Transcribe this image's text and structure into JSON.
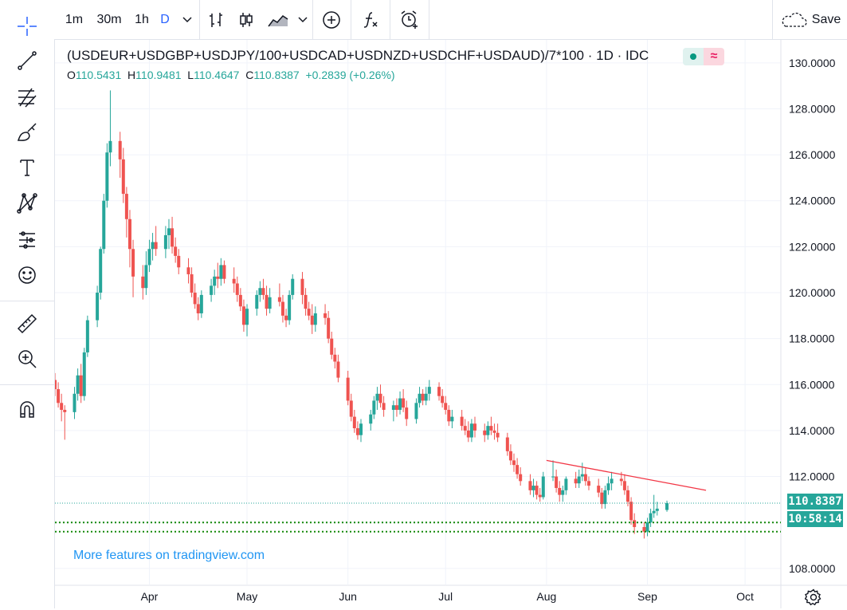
{
  "toolbar": {
    "intervals": [
      "1m",
      "30m",
      "1h",
      "D"
    ],
    "active_interval": "D",
    "save_label": "Save",
    "icons": [
      "chevron-down-icon",
      "bar-style-icon",
      "candle-style-icon",
      "area-style-icon",
      "chevron-down-icon",
      "add-compare-icon",
      "indicators-icon",
      "alert-icon",
      "cloud-icon"
    ]
  },
  "drawing_tools": [
    "crosshair-icon",
    "trend-line-icon",
    "fib-tool-icon",
    "brush-icon",
    "text-icon",
    "pattern-icon",
    "forecast-icon",
    "emoji-icon",
    "ruler-icon",
    "zoom-icon",
    "magnet-icon"
  ],
  "legend": {
    "title": "(USDEUR+USDGBP+USDJPY/100+USDCAD+USDNZD+USDCHF+USDAUD)/7*100 · 1D · IDC",
    "open_key": "O",
    "open": "110.5431",
    "high_key": "H",
    "high": "110.9481",
    "low_key": "L",
    "low": "110.4647",
    "close_key": "C",
    "close": "110.8387",
    "change": "+0.2839 (+0.26%)"
  },
  "price_label": "110.8387",
  "countdown_label": "10:58:14",
  "watermark": "More features on tradingview.com",
  "colors": {
    "up": "#26a69a",
    "down": "#ef5350",
    "accent": "#2962ff",
    "trendline": "#f23645",
    "level": "#138808"
  },
  "chart_data": {
    "type": "candlestick",
    "y_ticks": [
      "108.0000",
      "110.0000",
      "112.0000",
      "114.0000",
      "116.0000",
      "118.0000",
      "120.0000",
      "122.0000",
      "124.0000",
      "126.0000",
      "128.0000",
      "130.0000"
    ],
    "ylim": [
      107.3,
      131.0
    ],
    "x_ticks": [
      {
        "label": "Apr",
        "date": "2020-04-01"
      },
      {
        "label": "May",
        "date": "2020-05-01"
      },
      {
        "label": "Jun",
        "date": "2020-06-01"
      },
      {
        "label": "Jul",
        "date": "2020-07-01"
      },
      {
        "label": "Aug",
        "date": "2020-08-01"
      },
      {
        "label": "Sep",
        "date": "2020-09-01"
      },
      {
        "label": "Oct",
        "date": "2020-10-01"
      }
    ],
    "x_range": [
      "2020-03-03",
      "2020-10-12"
    ],
    "last_price": 110.8387,
    "horizontal_levels": [
      110.0,
      109.6
    ],
    "trend_line": [
      [
        "2020-08-01",
        112.7
      ],
      [
        "2020-09-19",
        111.4
      ]
    ],
    "candles": [
      [
        "2020-03-03",
        116.2,
        116.5,
        115.5,
        115.8
      ],
      [
        "2020-03-04",
        115.8,
        116.1,
        115.0,
        115.2
      ],
      [
        "2020-03-05",
        115.2,
        115.6,
        114.4,
        114.9
      ],
      [
        "2020-03-06",
        114.9,
        115.1,
        113.6,
        114.8
      ],
      [
        "2020-03-09",
        114.8,
        115.9,
        114.5,
        115.6
      ],
      [
        "2020-03-10",
        115.6,
        116.7,
        115.3,
        116.4
      ],
      [
        "2020-03-11",
        116.4,
        116.9,
        115.2,
        115.5
      ],
      [
        "2020-03-12",
        115.5,
        117.6,
        115.3,
        117.4
      ],
      [
        "2020-03-13",
        117.4,
        119.0,
        117.2,
        118.8
      ],
      [
        "2020-03-16",
        118.8,
        120.3,
        118.5,
        120.0
      ],
      [
        "2020-03-17",
        120.0,
        122.0,
        119.7,
        121.9
      ],
      [
        "2020-03-18",
        121.9,
        124.3,
        121.7,
        124.0
      ],
      [
        "2020-03-19",
        124.0,
        126.5,
        123.7,
        126.1
      ],
      [
        "2020-03-20",
        126.1,
        128.8,
        125.5,
        126.6
      ],
      [
        "2020-03-23",
        126.6,
        127.0,
        125.0,
        125.8
      ],
      [
        "2020-03-24",
        125.8,
        126.3,
        123.9,
        124.3
      ],
      [
        "2020-03-25",
        124.3,
        124.6,
        122.4,
        123.2
      ],
      [
        "2020-03-26",
        123.2,
        123.6,
        121.1,
        121.9
      ],
      [
        "2020-03-27",
        121.9,
        122.3,
        119.8,
        120.7
      ],
      [
        "2020-03-30",
        120.7,
        121.2,
        119.7,
        120.2
      ],
      [
        "2020-03-31",
        120.2,
        121.8,
        119.9,
        121.2
      ],
      [
        "2020-04-01",
        121.2,
        122.3,
        120.9,
        121.9
      ],
      [
        "2020-04-02",
        121.9,
        122.6,
        121.4,
        122.2
      ],
      [
        "2020-04-03",
        122.2,
        122.9,
        121.6,
        121.9
      ],
      [
        "2020-04-06",
        121.9,
        122.9,
        121.5,
        122.5
      ],
      [
        "2020-04-07",
        122.5,
        123.2,
        121.9,
        122.8
      ],
      [
        "2020-04-08",
        122.8,
        123.3,
        121.7,
        122.0
      ],
      [
        "2020-04-09",
        122.0,
        122.4,
        121.3,
        121.6
      ],
      [
        "2020-04-10",
        121.6,
        121.9,
        120.8,
        121.1
      ],
      [
        "2020-04-13",
        121.1,
        121.5,
        120.4,
        120.8
      ],
      [
        "2020-04-14",
        120.8,
        121.1,
        119.8,
        120.0
      ],
      [
        "2020-04-15",
        120.0,
        120.4,
        119.3,
        119.5
      ],
      [
        "2020-04-16",
        119.5,
        119.8,
        118.8,
        119.1
      ],
      [
        "2020-04-17",
        119.1,
        120.1,
        118.9,
        119.9
      ],
      [
        "2020-04-20",
        119.9,
        120.6,
        119.6,
        120.3
      ],
      [
        "2020-04-21",
        120.3,
        121.0,
        119.9,
        120.7
      ],
      [
        "2020-04-22",
        120.7,
        121.3,
        120.2,
        120.6
      ],
      [
        "2020-04-23",
        120.6,
        121.5,
        120.3,
        121.2
      ],
      [
        "2020-04-24",
        121.2,
        121.4,
        120.4,
        120.6
      ],
      [
        "2020-04-27",
        120.6,
        121.1,
        120.0,
        120.4
      ],
      [
        "2020-04-28",
        120.4,
        120.7,
        119.6,
        119.9
      ],
      [
        "2020-04-29",
        119.9,
        120.2,
        119.2,
        119.4
      ],
      [
        "2020-04-30",
        119.4,
        119.7,
        118.3,
        118.6
      ],
      [
        "2020-05-01",
        118.6,
        119.5,
        118.1,
        119.3
      ],
      [
        "2020-05-04",
        119.3,
        120.1,
        119.0,
        119.9
      ],
      [
        "2020-05-05",
        119.9,
        120.5,
        119.6,
        120.2
      ],
      [
        "2020-05-06",
        120.2,
        120.6,
        119.7,
        119.9
      ],
      [
        "2020-05-07",
        119.9,
        120.3,
        119.0,
        119.3
      ],
      [
        "2020-05-08",
        119.3,
        120.2,
        119.1,
        119.8
      ],
      [
        "2020-05-11",
        119.8,
        120.4,
        119.4,
        119.6
      ],
      [
        "2020-05-12",
        119.6,
        119.9,
        118.7,
        119.0
      ],
      [
        "2020-05-13",
        119.0,
        119.3,
        118.5,
        118.8
      ],
      [
        "2020-05-14",
        118.8,
        120.1,
        118.6,
        119.9
      ],
      [
        "2020-05-15",
        119.9,
        120.8,
        119.7,
        120.6
      ],
      [
        "2020-05-18",
        120.6,
        120.9,
        119.5,
        119.9
      ],
      [
        "2020-05-19",
        119.9,
        120.2,
        119.0,
        119.3
      ],
      [
        "2020-05-20",
        119.3,
        119.6,
        118.8,
        119.0
      ],
      [
        "2020-05-21",
        119.0,
        119.5,
        118.2,
        118.6
      ],
      [
        "2020-05-22",
        118.6,
        119.4,
        118.3,
        119.1
      ],
      [
        "2020-05-25",
        119.1,
        119.5,
        118.6,
        118.9
      ],
      [
        "2020-05-26",
        118.9,
        119.2,
        117.8,
        118.0
      ],
      [
        "2020-05-27",
        118.0,
        118.3,
        117.1,
        117.3
      ],
      [
        "2020-05-28",
        117.3,
        117.6,
        116.7,
        117.0
      ],
      [
        "2020-05-29",
        117.0,
        117.3,
        116.1,
        116.3
      ],
      [
        "2020-06-01",
        116.3,
        116.6,
        115.1,
        115.3
      ],
      [
        "2020-06-02",
        115.3,
        115.6,
        114.4,
        114.6
      ],
      [
        "2020-06-03",
        114.6,
        114.9,
        113.9,
        114.1
      ],
      [
        "2020-06-04",
        114.1,
        114.4,
        113.6,
        113.8
      ],
      [
        "2020-06-05",
        113.8,
        114.5,
        113.5,
        114.3
      ],
      [
        "2020-06-08",
        114.3,
        114.9,
        114.0,
        114.7
      ],
      [
        "2020-06-09",
        114.7,
        115.5,
        114.5,
        115.3
      ],
      [
        "2020-06-10",
        115.3,
        115.9,
        114.9,
        115.6
      ],
      [
        "2020-06-11",
        115.6,
        116.0,
        115.0,
        115.2
      ],
      [
        "2020-06-12",
        115.2,
        115.5,
        114.6,
        114.9
      ],
      [
        "2020-06-15",
        114.9,
        115.3,
        114.4,
        115.1
      ],
      [
        "2020-06-16",
        115.1,
        115.4,
        114.6,
        114.9
      ],
      [
        "2020-06-17",
        114.9,
        115.7,
        114.7,
        115.4
      ],
      [
        "2020-06-18",
        115.4,
        115.8,
        114.8,
        115.0
      ],
      [
        "2020-06-19",
        115.0,
        115.3,
        114.2,
        114.5
      ],
      [
        "2020-06-22",
        114.5,
        115.4,
        114.3,
        115.2
      ],
      [
        "2020-06-23",
        115.2,
        115.9,
        115.0,
        115.6
      ],
      [
        "2020-06-24",
        115.6,
        115.8,
        115.1,
        115.3
      ],
      [
        "2020-06-25",
        115.3,
        115.9,
        115.1,
        115.6
      ],
      [
        "2020-06-26",
        115.6,
        116.2,
        115.3,
        115.9
      ],
      [
        "2020-06-29",
        115.9,
        116.1,
        115.3,
        115.5
      ],
      [
        "2020-06-30",
        115.5,
        115.8,
        115.0,
        115.2
      ],
      [
        "2020-07-01",
        115.2,
        115.5,
        114.7,
        114.9
      ],
      [
        "2020-07-02",
        114.9,
        115.1,
        114.2,
        114.4
      ],
      [
        "2020-07-03",
        114.4,
        114.9,
        114.1,
        114.6
      ],
      [
        "2020-07-06",
        114.6,
        114.9,
        114.0,
        114.2
      ],
      [
        "2020-07-07",
        114.2,
        114.5,
        113.8,
        114.0
      ],
      [
        "2020-07-08",
        114.0,
        114.4,
        113.5,
        113.7
      ],
      [
        "2020-07-09",
        113.7,
        114.5,
        113.5,
        114.3
      ],
      [
        "2020-07-10",
        114.3,
        114.6,
        113.7,
        114.0
      ],
      [
        "2020-07-13",
        114.0,
        114.3,
        113.5,
        113.8
      ],
      [
        "2020-07-14",
        113.8,
        114.4,
        113.6,
        114.2
      ],
      [
        "2020-07-15",
        114.2,
        114.6,
        113.8,
        114.0
      ],
      [
        "2020-07-16",
        114.0,
        114.3,
        113.6,
        113.9
      ],
      [
        "2020-07-17",
        113.9,
        114.3,
        113.5,
        113.7
      ],
      [
        "2020-07-20",
        113.7,
        113.9,
        112.9,
        113.1
      ],
      [
        "2020-07-21",
        113.1,
        113.4,
        112.5,
        112.7
      ],
      [
        "2020-07-22",
        112.7,
        113.0,
        112.2,
        112.5
      ],
      [
        "2020-07-23",
        112.5,
        112.8,
        111.9,
        112.1
      ],
      [
        "2020-07-24",
        112.1,
        112.4,
        111.6,
        111.8
      ],
      [
        "2020-07-27",
        111.8,
        112.1,
        111.2,
        111.4
      ],
      [
        "2020-07-28",
        111.4,
        111.9,
        111.1,
        111.6
      ],
      [
        "2020-07-29",
        111.6,
        111.8,
        111.0,
        111.2
      ],
      [
        "2020-07-30",
        111.2,
        111.5,
        110.9,
        111.1
      ],
      [
        "2020-07-31",
        111.1,
        112.2,
        111.0,
        112.0
      ],
      [
        "2020-08-03",
        112.0,
        112.7,
        111.8,
        112.0
      ],
      [
        "2020-08-04",
        112.0,
        112.3,
        111.3,
        111.5
      ],
      [
        "2020-08-05",
        111.5,
        111.8,
        110.9,
        111.2
      ],
      [
        "2020-08-06",
        111.2,
        111.6,
        110.9,
        111.4
      ],
      [
        "2020-08-07",
        111.4,
        112.0,
        111.2,
        111.9
      ],
      [
        "2020-08-10",
        111.9,
        112.2,
        111.5,
        111.7
      ],
      [
        "2020-08-11",
        111.7,
        112.3,
        111.5,
        112.0
      ],
      [
        "2020-08-12",
        112.0,
        112.6,
        111.8,
        112.1
      ],
      [
        "2020-08-13",
        112.1,
        112.4,
        111.6,
        111.8
      ],
      [
        "2020-08-14",
        111.8,
        112.0,
        111.4,
        111.6
      ],
      [
        "2020-08-17",
        111.6,
        111.9,
        111.1,
        111.3
      ],
      [
        "2020-08-18",
        111.3,
        111.5,
        110.6,
        110.8
      ],
      [
        "2020-08-19",
        110.8,
        111.6,
        110.6,
        111.4
      ],
      [
        "2020-08-20",
        111.4,
        112.0,
        111.2,
        111.7
      ],
      [
        "2020-08-21",
        111.7,
        112.2,
        111.4,
        111.9
      ],
      [
        "2020-08-24",
        111.9,
        112.2,
        111.6,
        111.8
      ],
      [
        "2020-08-25",
        111.8,
        112.1,
        111.2,
        111.4
      ],
      [
        "2020-08-26",
        111.4,
        111.6,
        110.7,
        110.9
      ],
      [
        "2020-08-27",
        110.9,
        111.1,
        109.9,
        110.1
      ],
      [
        "2020-08-28",
        110.1,
        110.4,
        109.5,
        109.8
      ],
      [
        "2020-08-31",
        109.8,
        110.0,
        109.3,
        109.6
      ],
      [
        "2020-09-01",
        109.6,
        110.2,
        109.4,
        110.0
      ],
      [
        "2020-09-02",
        110.0,
        110.6,
        109.8,
        110.4
      ],
      [
        "2020-09-03",
        110.4,
        111.2,
        110.2,
        110.5
      ],
      [
        "2020-09-04",
        110.5,
        110.9,
        110.3,
        110.6
      ],
      [
        "2020-09-07",
        110.5431,
        110.9481,
        110.4647,
        110.8387
      ]
    ]
  }
}
